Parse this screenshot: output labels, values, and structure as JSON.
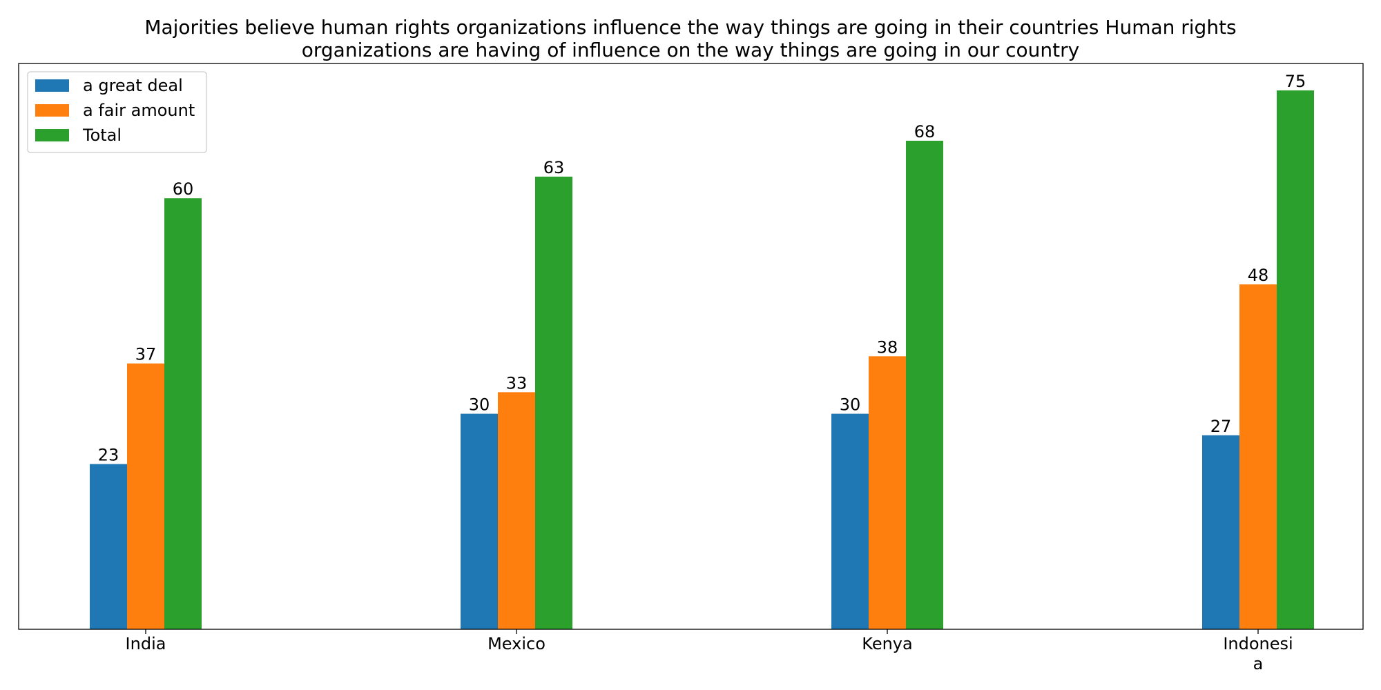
{
  "chart_data": {
    "type": "bar",
    "title": "Majorities believe human rights organizations influence the way things are going in their countries Human rights organizations are having of influence on the way things are going in our country",
    "title_lines": [
      "Majorities believe human rights organizations influence the way things are going in their countries Human rights",
      "organizations are having of influence on the way things are going in our country"
    ],
    "categories": [
      "India",
      "Mexico",
      "Kenya",
      "Indonesia"
    ],
    "category_label_lines": [
      [
        "India"
      ],
      [
        "Mexico"
      ],
      [
        "Kenya"
      ],
      [
        "Indonesi",
        "a"
      ]
    ],
    "series": [
      {
        "name": "a great deal",
        "values": [
          23,
          30,
          30,
          27
        ],
        "color": "#1f77b4"
      },
      {
        "name": "a fair amount",
        "values": [
          37,
          33,
          38,
          48
        ],
        "color": "#ff7f0e"
      },
      {
        "name": "Total",
        "values": [
          60,
          63,
          68,
          75
        ],
        "color": "#2ca02c"
      }
    ],
    "xlabel": "",
    "ylabel": "",
    "ylim": [
      0,
      78.75
    ],
    "y_axis_visible": false,
    "grid": false,
    "legend_position": "top-left"
  }
}
